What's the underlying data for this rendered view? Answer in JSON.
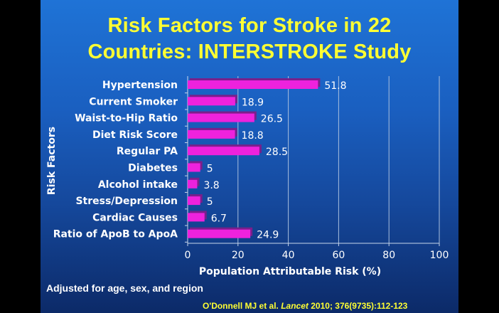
{
  "slide": {
    "title_line1": "Risk Factors for Stroke in 22",
    "title_line2": "Countries: INTERSTROKE Study",
    "note": "Adjusted for age, sex, and region",
    "citation_authors": "O'Donnell MJ et al.",
    "citation_journal": "Lancet",
    "citation_rest": "2010; 376(9735):112-123"
  },
  "colors": {
    "title": "#ffff33",
    "bar": "#ee22dd",
    "bar_shadow": "#7a1f8c",
    "text": "#ffffff"
  },
  "chart_data": {
    "type": "bar",
    "orientation": "horizontal",
    "categories": [
      "Hypertension",
      "Current Smoker",
      "Waist-to-Hip Ratio",
      "Diet Risk Score",
      "Regular PA",
      "Diabetes",
      "Alcohol intake",
      "Stress/Depression",
      "Cardiac Causes",
      "Ratio of ApoB to ApoA"
    ],
    "values": [
      51.8,
      18.9,
      26.5,
      18.8,
      28.5,
      5,
      3.8,
      5,
      6.7,
      24.9
    ],
    "value_labels": [
      "51.8",
      "18.9",
      "26.5",
      "18.8",
      "28.5",
      "5",
      "3.8",
      "5",
      "6.7",
      "24.9"
    ],
    "xlabel": "Population Attributable Risk (%)",
    "ylabel": "Risk Factors",
    "xlim": [
      0,
      100
    ],
    "xticks": [
      0,
      20,
      40,
      60,
      80,
      100
    ],
    "grid": true
  }
}
